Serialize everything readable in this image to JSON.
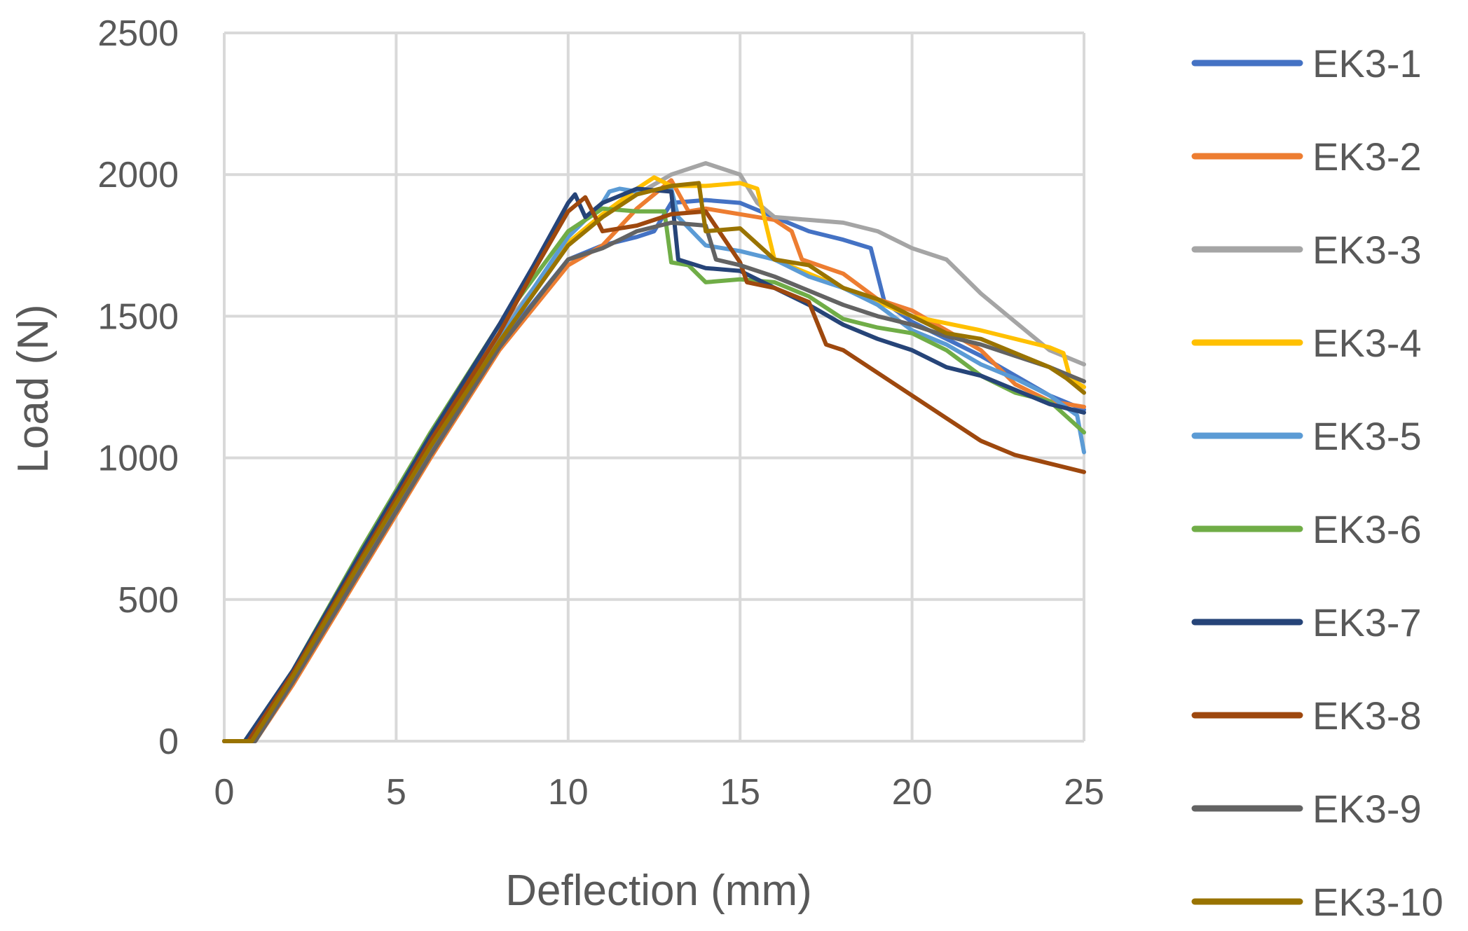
{
  "chart_data": {
    "type": "line",
    "title": "",
    "xlabel": "Deflection (mm)",
    "ylabel": "Load (N)",
    "xlim": [
      0,
      25
    ],
    "ylim": [
      0,
      2500
    ],
    "xticks": [
      "0",
      "5",
      "10",
      "15",
      "20",
      "25"
    ],
    "yticks": [
      "0",
      "500",
      "1000",
      "1500",
      "2000",
      "2500"
    ],
    "grid": true,
    "legend_position": "right",
    "series": [
      {
        "name": "EK3-1",
        "color": "#4472C4",
        "x": [
          0,
          0.9,
          2,
          4,
          6,
          8,
          10,
          11,
          12,
          12.5,
          13,
          14,
          15,
          16,
          17,
          18,
          18.8,
          19.2,
          20,
          22,
          24,
          25
        ],
        "y": [
          0,
          0,
          220,
          620,
          1020,
          1400,
          1700,
          1750,
          1780,
          1800,
          1900,
          1910,
          1900,
          1850,
          1800,
          1770,
          1740,
          1550,
          1480,
          1360,
          1220,
          1170
        ]
      },
      {
        "name": "EK3-2",
        "color": "#ED7D31",
        "x": [
          0,
          0.9,
          2,
          4,
          6,
          8,
          10,
          11,
          12,
          13,
          13.5,
          14,
          15,
          16,
          16.5,
          16.8,
          18,
          19,
          20,
          21,
          22,
          23,
          24,
          25
        ],
        "y": [
          0,
          0,
          200,
          600,
          1000,
          1380,
          1680,
          1750,
          1880,
          1980,
          1870,
          1880,
          1860,
          1840,
          1800,
          1700,
          1650,
          1560,
          1520,
          1450,
          1380,
          1260,
          1200,
          1180
        ]
      },
      {
        "name": "EK3-3",
        "color": "#A5A5A5",
        "x": [
          0,
          0.7,
          2,
          4,
          6,
          8,
          10,
          11,
          12,
          13,
          14,
          15,
          15.5,
          16,
          17,
          18,
          19,
          20,
          21,
          22,
          23,
          24,
          25
        ],
        "y": [
          0,
          0,
          240,
          660,
          1060,
          1440,
          1760,
          1850,
          1930,
          2000,
          2040,
          2000,
          1900,
          1850,
          1840,
          1830,
          1800,
          1740,
          1700,
          1580,
          1480,
          1380,
          1330
        ]
      },
      {
        "name": "EK3-4",
        "color": "#FFC000",
        "x": [
          0,
          0.8,
          2,
          4,
          6,
          8,
          10,
          11,
          12,
          12.5,
          13,
          14,
          15,
          15.5,
          16,
          17,
          18,
          20,
          22,
          24,
          24.4,
          24.6,
          25
        ],
        "y": [
          0,
          0,
          230,
          640,
          1040,
          1420,
          1760,
          1860,
          1950,
          1990,
          1960,
          1960,
          1970,
          1950,
          1700,
          1650,
          1600,
          1500,
          1450,
          1390,
          1370,
          1280,
          1250
        ]
      },
      {
        "name": "EK3-5",
        "color": "#5B9BD5",
        "x": [
          0,
          0.8,
          2,
          4,
          6,
          8,
          10,
          11,
          11.2,
          11.5,
          12,
          13,
          13.2,
          14,
          15,
          16,
          17,
          18,
          19,
          20,
          21,
          22,
          23,
          24,
          24.8,
          25
        ],
        "y": [
          0,
          0,
          230,
          640,
          1040,
          1420,
          1780,
          1900,
          1940,
          1950,
          1940,
          1950,
          1850,
          1750,
          1730,
          1700,
          1640,
          1600,
          1540,
          1450,
          1400,
          1330,
          1280,
          1220,
          1150,
          1020
        ]
      },
      {
        "name": "EK3-6",
        "color": "#70AD47",
        "x": [
          0,
          0.6,
          2,
          4,
          6,
          8,
          10,
          11,
          12,
          12.8,
          13,
          13.5,
          14,
          15,
          16,
          17,
          18,
          19,
          20,
          21,
          22,
          23,
          24,
          25
        ],
        "y": [
          0,
          0,
          250,
          680,
          1090,
          1470,
          1800,
          1880,
          1870,
          1870,
          1690,
          1680,
          1620,
          1630,
          1620,
          1570,
          1490,
          1460,
          1440,
          1380,
          1290,
          1230,
          1200,
          1090
        ]
      },
      {
        "name": "EK3-7",
        "color": "#264478",
        "x": [
          0,
          0.6,
          2,
          4,
          6,
          8,
          9,
          10,
          10.2,
          10.5,
          11,
          12,
          13,
          13.2,
          14,
          15,
          16,
          17,
          18,
          19,
          20,
          21,
          22,
          23,
          24,
          25
        ],
        "y": [
          0,
          0,
          250,
          670,
          1080,
          1470,
          1680,
          1900,
          1930,
          1850,
          1900,
          1950,
          1940,
          1700,
          1670,
          1660,
          1600,
          1540,
          1470,
          1420,
          1380,
          1320,
          1290,
          1240,
          1190,
          1160
        ]
      },
      {
        "name": "EK3-8",
        "color": "#9E480E",
        "x": [
          0,
          0.7,
          2,
          4,
          6,
          8,
          9,
          10,
          10.5,
          11,
          12,
          13,
          14,
          15,
          15.2,
          16,
          17,
          17.5,
          18,
          19,
          20,
          21,
          22,
          23,
          24,
          25
        ],
        "y": [
          0,
          0,
          240,
          650,
          1060,
          1440,
          1660,
          1870,
          1920,
          1800,
          1820,
          1860,
          1870,
          1690,
          1620,
          1600,
          1550,
          1400,
          1380,
          1300,
          1220,
          1140,
          1060,
          1010,
          980,
          950
        ]
      },
      {
        "name": "EK3-9",
        "color": "#636363",
        "x": [
          0,
          0.9,
          2,
          4,
          6,
          8,
          10,
          11,
          12,
          13,
          14,
          14.3,
          15,
          16,
          17,
          18,
          19,
          20,
          21,
          22,
          23,
          24,
          25
        ],
        "y": [
          0,
          0,
          210,
          610,
          1010,
          1390,
          1700,
          1740,
          1800,
          1830,
          1820,
          1700,
          1680,
          1640,
          1590,
          1540,
          1500,
          1470,
          1430,
          1400,
          1360,
          1320,
          1270
        ]
      },
      {
        "name": "EK3-10",
        "color": "#997300",
        "x": [
          0,
          0.8,
          2,
          4,
          6,
          8,
          10,
          11,
          12,
          13,
          13.8,
          14,
          15,
          16,
          17,
          18,
          19,
          20,
          21,
          22,
          23,
          24,
          24.5,
          25
        ],
        "y": [
          0,
          0,
          230,
          640,
          1040,
          1410,
          1750,
          1850,
          1930,
          1960,
          1970,
          1800,
          1810,
          1700,
          1680,
          1600,
          1560,
          1500,
          1440,
          1420,
          1370,
          1320,
          1280,
          1230
        ]
      }
    ]
  }
}
